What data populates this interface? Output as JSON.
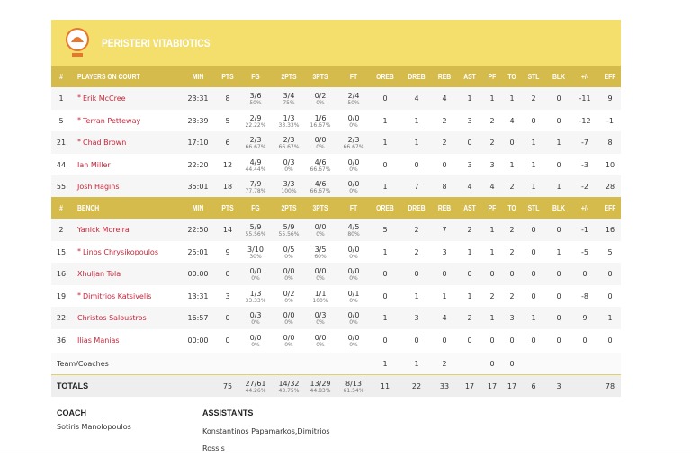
{
  "header": {
    "team": "PERISTERI VITABIOTICS"
  },
  "starters": {
    "columns": [
      "#",
      "PLAYERS ON COURT",
      "MIN",
      "PTS",
      "FG",
      "2PTS",
      "3PTS",
      "FT",
      "OREB",
      "DREB",
      "REB",
      "AST",
      "PF",
      "TO",
      "STL",
      "BLK",
      "+/-",
      "EFF"
    ],
    "rows": [
      {
        "no": 1,
        "mark": "*",
        "name": "Erik McCree",
        "min": "23:31",
        "pts": 8,
        "fg": {
          "m": "3/6",
          "pct": "50%"
        },
        "p2": {
          "m": "3/4",
          "pct": "75%"
        },
        "p3": {
          "m": "0/2",
          "pct": "0%"
        },
        "ft": {
          "m": "2/4",
          "pct": "50%"
        },
        "oreb": 0,
        "dreb": 4,
        "reb": 4,
        "ast": 1,
        "pf": 1,
        "to": 1,
        "stl": 2,
        "blk": 0,
        "pm": -11,
        "eff": 9
      },
      {
        "no": 5,
        "mark": "*",
        "name": "Terran Petteway",
        "min": "23:39",
        "pts": 5,
        "fg": {
          "m": "2/9",
          "pct": "22.22%"
        },
        "p2": {
          "m": "1/3",
          "pct": "33.33%"
        },
        "p3": {
          "m": "1/6",
          "pct": "16.67%"
        },
        "ft": {
          "m": "0/0",
          "pct": "0%"
        },
        "oreb": 1,
        "dreb": 1,
        "reb": 2,
        "ast": 3,
        "pf": 2,
        "to": 4,
        "stl": 0,
        "blk": 0,
        "pm": -12,
        "eff": -1
      },
      {
        "no": 21,
        "mark": "*",
        "name": "Chad Brown",
        "min": "17:10",
        "pts": 6,
        "fg": {
          "m": "2/3",
          "pct": "66.67%"
        },
        "p2": {
          "m": "2/3",
          "pct": "66.67%"
        },
        "p3": {
          "m": "0/0",
          "pct": "0%"
        },
        "ft": {
          "m": "2/3",
          "pct": "66.67%"
        },
        "oreb": 1,
        "dreb": 1,
        "reb": 2,
        "ast": 0,
        "pf": 2,
        "to": 0,
        "stl": 1,
        "blk": 1,
        "pm": -7,
        "eff": 8
      },
      {
        "no": 44,
        "name": "Ian Miller",
        "min": "22:20",
        "pts": 12,
        "fg": {
          "m": "4/9",
          "pct": "44.44%"
        },
        "p2": {
          "m": "0/3",
          "pct": "0%"
        },
        "p3": {
          "m": "4/6",
          "pct": "66.67%"
        },
        "ft": {
          "m": "0/0",
          "pct": "0%"
        },
        "oreb": 0,
        "dreb": 0,
        "reb": 0,
        "ast": 3,
        "pf": 3,
        "to": 1,
        "stl": 1,
        "blk": 0,
        "pm": -3,
        "eff": 10
      },
      {
        "no": 55,
        "name": "Josh Hagins",
        "min": "35:01",
        "pts": 18,
        "fg": {
          "m": "7/9",
          "pct": "77.78%"
        },
        "p2": {
          "m": "3/3",
          "pct": "100%"
        },
        "p3": {
          "m": "4/6",
          "pct": "66.67%"
        },
        "ft": {
          "m": "0/0",
          "pct": "0%"
        },
        "oreb": 1,
        "dreb": 7,
        "reb": 8,
        "ast": 4,
        "pf": 4,
        "to": 2,
        "stl": 1,
        "blk": 1,
        "pm": -2,
        "eff": 28
      }
    ]
  },
  "bench": {
    "columns": [
      "#",
      "BENCH",
      "MIN",
      "PTS",
      "FG",
      "2PTS",
      "3PTS",
      "FT",
      "OREB",
      "DREB",
      "REB",
      "AST",
      "PF",
      "TO",
      "STL",
      "BLK",
      "+/-",
      "EFF"
    ],
    "rows": [
      {
        "no": 2,
        "name": "Yanick Moreira",
        "min": "22:50",
        "pts": 14,
        "fg": {
          "m": "5/9",
          "pct": "55.56%"
        },
        "p2": {
          "m": "5/9",
          "pct": "55.56%"
        },
        "p3": {
          "m": "0/0",
          "pct": "0%"
        },
        "ft": {
          "m": "4/5",
          "pct": "80%"
        },
        "oreb": 5,
        "dreb": 2,
        "reb": 7,
        "ast": 2,
        "pf": 1,
        "to": 2,
        "stl": 0,
        "blk": 0,
        "pm": -1,
        "eff": 16
      },
      {
        "no": 15,
        "mark": "*",
        "name": "Linos Chrysikopoulos",
        "min": "25:01",
        "pts": 9,
        "fg": {
          "m": "3/10",
          "pct": "30%"
        },
        "p2": {
          "m": "0/5",
          "pct": "0%"
        },
        "p3": {
          "m": "3/5",
          "pct": "60%"
        },
        "ft": {
          "m": "0/0",
          "pct": "0%"
        },
        "oreb": 1,
        "dreb": 2,
        "reb": 3,
        "ast": 1,
        "pf": 1,
        "to": 2,
        "stl": 0,
        "blk": 1,
        "pm": -5,
        "eff": 5
      },
      {
        "no": 16,
        "name": "Xhuljan Tola",
        "min": "00:00",
        "pts": 0,
        "fg": {
          "m": "0/0",
          "pct": "0%"
        },
        "p2": {
          "m": "0/0",
          "pct": "0%"
        },
        "p3": {
          "m": "0/0",
          "pct": "0%"
        },
        "ft": {
          "m": "0/0",
          "pct": "0%"
        },
        "oreb": 0,
        "dreb": 0,
        "reb": 0,
        "ast": 0,
        "pf": 0,
        "to": 0,
        "stl": 0,
        "blk": 0,
        "pm": 0,
        "eff": 0
      },
      {
        "no": 19,
        "mark": "*",
        "name": "Dimitrios Katsivelis",
        "min": "13:31",
        "pts": 3,
        "fg": {
          "m": "1/3",
          "pct": "33.33%"
        },
        "p2": {
          "m": "0/2",
          "pct": "0%"
        },
        "p3": {
          "m": "1/1",
          "pct": "100%"
        },
        "ft": {
          "m": "0/1",
          "pct": "0%"
        },
        "oreb": 0,
        "dreb": 1,
        "reb": 1,
        "ast": 1,
        "pf": 2,
        "to": 2,
        "stl": 0,
        "blk": 0,
        "pm": -8,
        "eff": 0
      },
      {
        "no": 22,
        "name": "Christos Saloustros",
        "min": "16:57",
        "pts": 0,
        "fg": {
          "m": "0/3",
          "pct": "0%"
        },
        "p2": {
          "m": "0/0",
          "pct": "0%"
        },
        "p3": {
          "m": "0/3",
          "pct": "0%"
        },
        "ft": {
          "m": "0/0",
          "pct": "0%"
        },
        "oreb": 1,
        "dreb": 3,
        "reb": 4,
        "ast": 2,
        "pf": 1,
        "to": 3,
        "stl": 1,
        "blk": 0,
        "pm": 9,
        "eff": 1
      },
      {
        "no": 36,
        "name": "Ilias Manias",
        "min": "00:00",
        "pts": 0,
        "fg": {
          "m": "0/0",
          "pct": "0%"
        },
        "p2": {
          "m": "0/0",
          "pct": "0%"
        },
        "p3": {
          "m": "0/0",
          "pct": "0%"
        },
        "ft": {
          "m": "0/0",
          "pct": "0%"
        },
        "oreb": 0,
        "dreb": 0,
        "reb": 0,
        "ast": 0,
        "pf": 0,
        "to": 0,
        "stl": 0,
        "blk": 0,
        "pm": 0,
        "eff": 0
      }
    ]
  },
  "team": {
    "label": "Team/Coaches",
    "oreb": 1,
    "dreb": 1,
    "reb": 2,
    "pf": 0,
    "to": 0
  },
  "totals": {
    "label": "TOTALS",
    "pts": 75,
    "fg": {
      "m": "27/61",
      "pct": "44.26%"
    },
    "p2": {
      "m": "14/32",
      "pct": "43.75%"
    },
    "p3": {
      "m": "13/29",
      "pct": "44.83%"
    },
    "ft": {
      "m": "8/13",
      "pct": "61.54%"
    },
    "oreb": 11,
    "dreb": 22,
    "reb": 33,
    "ast": 17,
    "pf": 17,
    "to": 17,
    "stl": 6,
    "blk": 3,
    "eff": 78
  },
  "staff": {
    "coach_title": "COACH",
    "coach": "Sotiris Manolopoulos",
    "assistants_title": "ASSISTANTS",
    "assistants": "Konstantinos Papamarkos,Dimitrios Rossis"
  }
}
